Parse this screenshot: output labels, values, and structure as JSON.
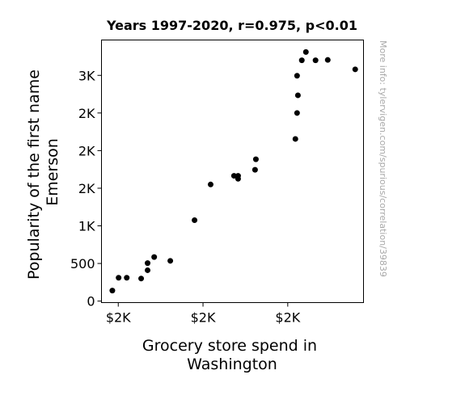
{
  "chart_data": {
    "type": "scatter",
    "title": "Years 1997-2020, r=0.975, p<0.01",
    "xlabel": [
      "Grocery store spend in",
      "Washington"
    ],
    "ylabel": [
      "Popularity of the first name",
      "Emerson"
    ],
    "watermark": "More info: tylervigen.com/spurious/correlation/39839",
    "grid": false,
    "xlim": [
      1.8951,
      2.0497
    ],
    "ylim": [
      -20,
      3470
    ],
    "xticks": [
      {
        "value": 1.905,
        "label": "$2K"
      },
      {
        "value": 1.955,
        "label": "$2K"
      },
      {
        "value": 2.005,
        "label": "$2K"
      }
    ],
    "yticks": [
      {
        "value": 0,
        "label": "0"
      },
      {
        "value": 500,
        "label": "500"
      },
      {
        "value": 1000,
        "label": "1K"
      },
      {
        "value": 1500,
        "label": "2K"
      },
      {
        "value": 2000,
        "label": "2K"
      },
      {
        "value": 2500,
        "label": "2K"
      },
      {
        "value": 3000,
        "label": "3K"
      }
    ],
    "marker_color": "#000000",
    "points": [
      {
        "x": 1.9015,
        "y": 140
      },
      {
        "x": 1.9052,
        "y": 310
      },
      {
        "x": 1.91,
        "y": 310
      },
      {
        "x": 1.9185,
        "y": 300
      },
      {
        "x": 1.9223,
        "y": 410
      },
      {
        "x": 1.9223,
        "y": 505
      },
      {
        "x": 1.9262,
        "y": 585
      },
      {
        "x": 1.9357,
        "y": 535
      },
      {
        "x": 1.95,
        "y": 1075
      },
      {
        "x": 1.9595,
        "y": 1550
      },
      {
        "x": 1.9733,
        "y": 1665
      },
      {
        "x": 1.9757,
        "y": 1625
      },
      {
        "x": 1.9757,
        "y": 1665
      },
      {
        "x": 1.9857,
        "y": 1745
      },
      {
        "x": 1.9862,
        "y": 1885
      },
      {
        "x": 2.0095,
        "y": 2155
      },
      {
        "x": 2.0105,
        "y": 2500
      },
      {
        "x": 2.0105,
        "y": 2995
      },
      {
        "x": 2.011,
        "y": 2735
      },
      {
        "x": 2.0133,
        "y": 3200
      },
      {
        "x": 2.0157,
        "y": 3310
      },
      {
        "x": 2.0214,
        "y": 3200
      },
      {
        "x": 2.0286,
        "y": 3205
      },
      {
        "x": 2.0448,
        "y": 3080
      }
    ]
  }
}
